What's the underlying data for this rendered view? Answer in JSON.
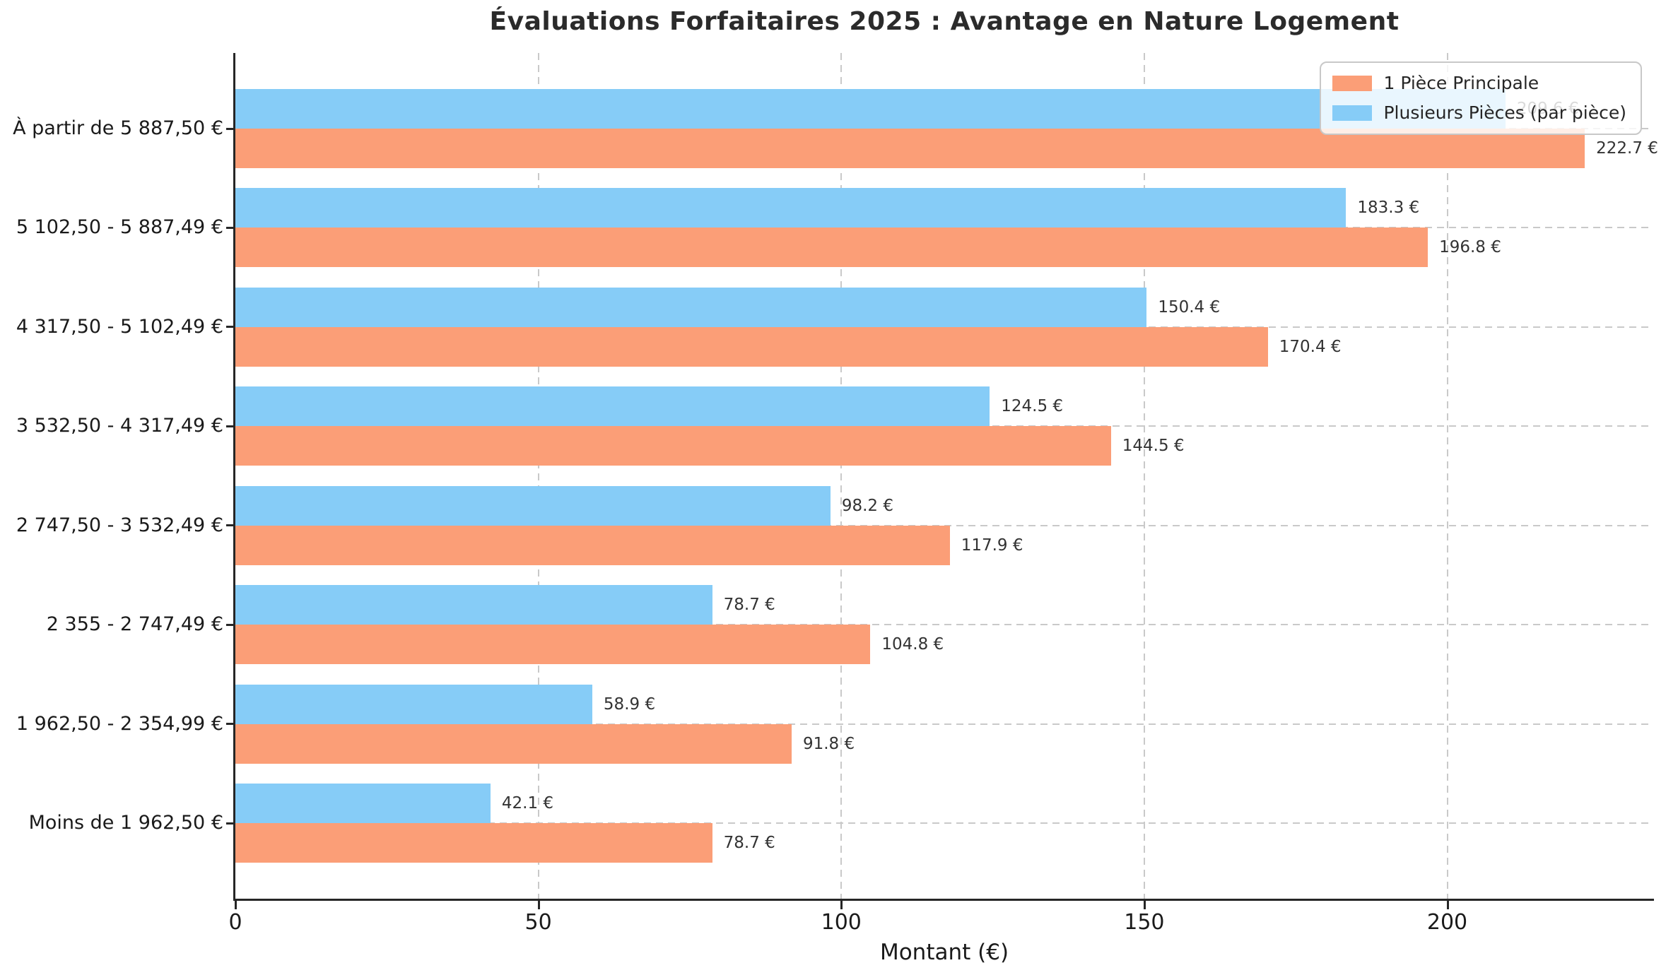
{
  "chart_data": {
    "type": "bar",
    "orientation": "horizontal",
    "title": "Évaluations Forfaitaires 2025 : Avantage en Nature Logement",
    "xlabel": "Montant (€)",
    "value_suffix": " €",
    "categories": [
      "À partir de 5 887,50 €",
      "5 102,50 - 5 887,49 €",
      "4 317,50 - 5 102,49 €",
      "3 532,50 - 4 317,49 €",
      "2 747,50 - 3 532,49 €",
      "2 355 - 2 747,49 €",
      "1 962,50 - 2 354,99 €",
      "Moins de 1 962,50 €"
    ],
    "series": [
      {
        "name": "1 Pièce Principale",
        "color": "#FB9E77",
        "position": "bottom",
        "values": [
          222.7,
          196.8,
          170.4,
          144.5,
          117.9,
          104.8,
          91.8,
          78.7
        ]
      },
      {
        "name": "Plusieurs Pièces (par pièce)",
        "color": "#86CCF7",
        "position": "top",
        "values": [
          209.6,
          183.3,
          150.4,
          124.5,
          98.2,
          78.7,
          58.9,
          42.1
        ]
      }
    ],
    "xlim": [
      0,
      234
    ],
    "xticks": [
      0,
      50,
      100,
      150,
      200
    ],
    "grid": true,
    "legend_position": "top-right",
    "colors": {
      "grid": "#c9c9c9",
      "spine": "#262626",
      "text": "#262626",
      "background": "#ffffff"
    }
  }
}
